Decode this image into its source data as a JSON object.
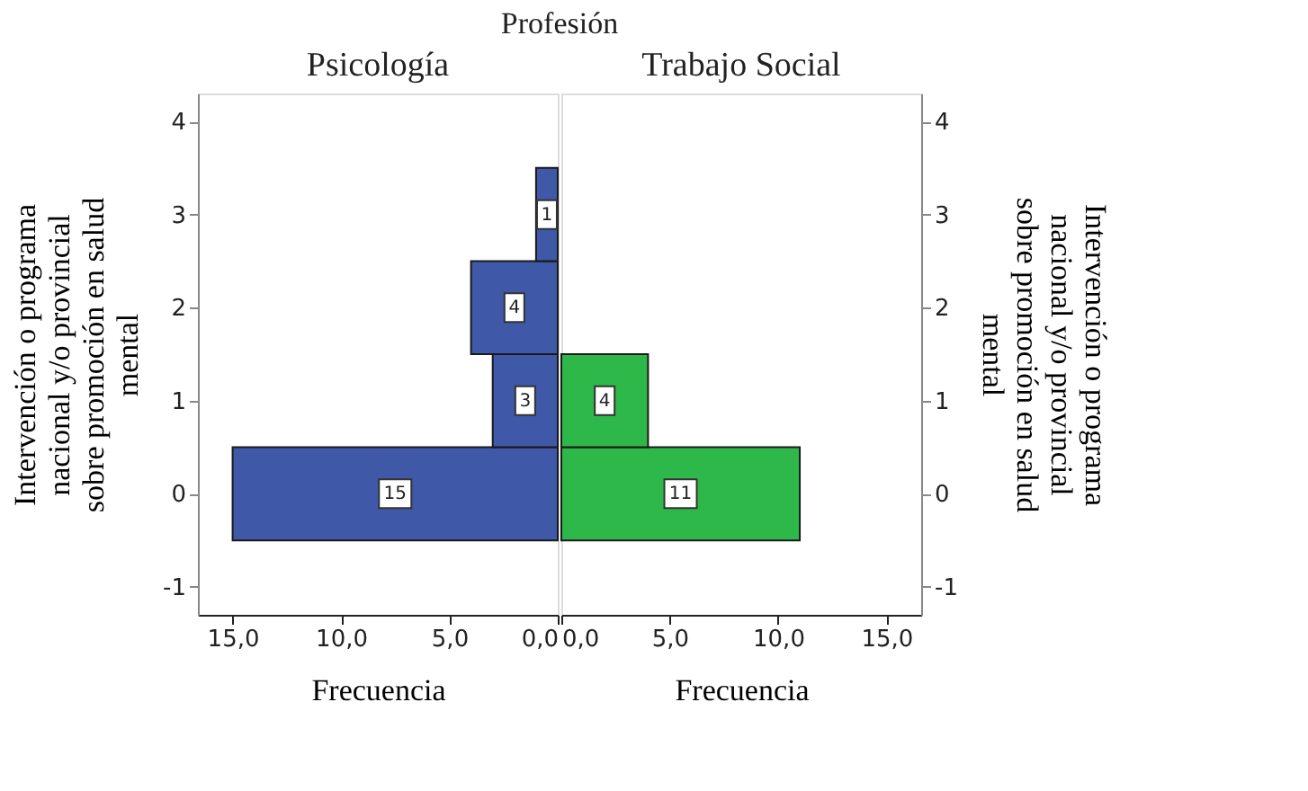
{
  "chart_data": [
    {
      "type": "bar",
      "orientation": "horizontal",
      "title": "Psicología",
      "annotations": [
        "Profesión"
      ],
      "xlabel": "Frecuencia",
      "ylabel": "Intervención o programa nacional y/o provincial sobre promoción en salud mental",
      "x": [
        0,
        1,
        2,
        3
      ],
      "values": [
        15,
        3,
        4,
        1
      ],
      "color": "#3f58a8",
      "data_labels": true,
      "xlim": [
        16.6,
        0
      ],
      "xticks": [
        {
          "value": 15,
          "label": "15,0"
        },
        {
          "value": 10,
          "label": "10,0"
        },
        {
          "value": 5,
          "label": "5,0"
        },
        {
          "value": 0,
          "label": "0,0"
        }
      ],
      "ylim": [
        -1.3,
        4.3
      ],
      "yticks": [
        -1,
        0,
        1,
        2,
        3,
        4
      ],
      "grid": false
    },
    {
      "type": "bar",
      "orientation": "horizontal",
      "title": "Trabajo Social",
      "xlabel": "Frecuencia",
      "ylabel": "Intervención o programa nacional y/o provincial sobre promoción en salud mental",
      "x": [
        0,
        1
      ],
      "values": [
        11,
        4
      ],
      "color": "#2fb84a",
      "data_labels": true,
      "xlim": [
        0,
        16.6
      ],
      "xticks": [
        {
          "value": 0,
          "label": "0,0"
        },
        {
          "value": 5,
          "label": "5,0"
        },
        {
          "value": 10,
          "label": "10,0"
        },
        {
          "value": 15,
          "label": "15,0"
        }
      ],
      "ylim": [
        -1.3,
        4.3
      ],
      "yticks": [
        -1,
        0,
        1,
        2,
        3,
        4
      ],
      "grid": false
    }
  ]
}
